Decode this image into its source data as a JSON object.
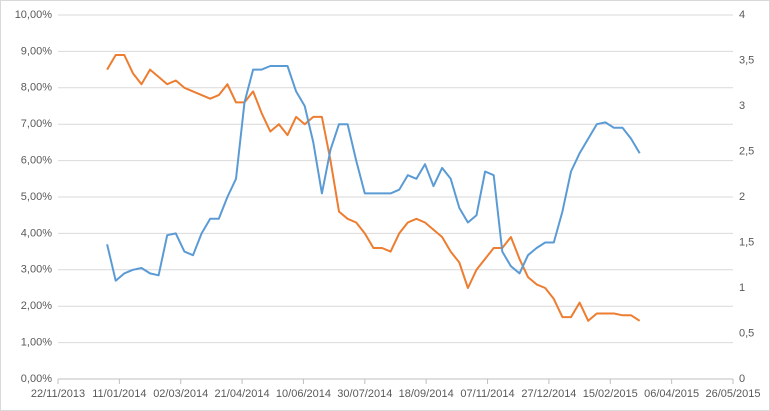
{
  "chart_data": {
    "type": "line",
    "x": [
      "2014-01-01",
      "2014-01-08",
      "2014-01-15",
      "2014-01-22",
      "2014-01-29",
      "2014-02-05",
      "2014-02-12",
      "2014-02-19",
      "2014-02-26",
      "2014-03-05",
      "2014-03-12",
      "2014-03-19",
      "2014-03-26",
      "2014-04-02",
      "2014-04-09",
      "2014-04-16",
      "2014-04-23",
      "2014-04-30",
      "2014-05-07",
      "2014-05-14",
      "2014-05-21",
      "2014-05-28",
      "2014-06-04",
      "2014-06-11",
      "2014-06-18",
      "2014-06-25",
      "2014-07-02",
      "2014-07-09",
      "2014-07-16",
      "2014-07-23",
      "2014-07-30",
      "2014-08-06",
      "2014-08-13",
      "2014-08-20",
      "2014-08-27",
      "2014-09-03",
      "2014-09-10",
      "2014-09-17",
      "2014-09-24",
      "2014-10-01",
      "2014-10-08",
      "2014-10-15",
      "2014-10-22",
      "2014-10-29",
      "2014-11-05",
      "2014-11-12",
      "2014-11-19",
      "2014-11-26",
      "2014-12-03",
      "2014-12-10",
      "2014-12-17",
      "2014-12-24",
      "2014-12-31",
      "2015-01-07",
      "2015-01-14",
      "2015-01-21",
      "2015-01-28",
      "2015-02-04",
      "2015-02-11",
      "2015-02-18",
      "2015-02-25",
      "2015-03-04",
      "2015-03-11"
    ],
    "series": [
      {
        "color": "#ed7d31",
        "axis": "y",
        "values": [
          8.5,
          8.9,
          8.9,
          8.4,
          8.1,
          8.5,
          8.3,
          8.1,
          8.2,
          8.0,
          7.9,
          7.8,
          7.7,
          7.8,
          8.1,
          7.6,
          7.6,
          7.9,
          7.3,
          6.8,
          7.0,
          6.7,
          7.2,
          7.0,
          7.2,
          7.2,
          6.0,
          4.6,
          4.4,
          4.3,
          4.0,
          3.6,
          3.6,
          3.5,
          4.0,
          4.3,
          4.4,
          4.3,
          4.1,
          3.9,
          3.5,
          3.2,
          2.5,
          3.0,
          3.3,
          3.6,
          3.6,
          3.9,
          3.3,
          2.8,
          2.6,
          2.5,
          2.2,
          1.7,
          1.7,
          2.1,
          1.6,
          1.8,
          1.8,
          1.8,
          1.75,
          1.75,
          1.6
        ]
      },
      {
        "color": "#5b9bd5",
        "axis": "y2",
        "values": [
          1.48,
          1.08,
          1.16,
          1.2,
          1.22,
          1.16,
          1.14,
          1.58,
          1.6,
          1.4,
          1.36,
          1.6,
          1.76,
          1.76,
          2.0,
          2.2,
          3.04,
          3.4,
          3.4,
          3.44,
          3.44,
          3.44,
          3.16,
          3.0,
          2.6,
          2.04,
          2.52,
          2.8,
          2.8,
          2.4,
          2.04,
          2.04,
          2.04,
          2.04,
          2.08,
          2.24,
          2.2,
          2.36,
          2.12,
          2.32,
          2.2,
          1.88,
          1.72,
          1.8,
          2.28,
          2.24,
          1.4,
          1.24,
          1.16,
          1.36,
          1.44,
          1.5,
          1.5,
          1.84,
          2.28,
          2.48,
          2.64,
          2.8,
          2.82,
          2.76,
          2.76,
          2.64,
          2.48
        ]
      }
    ],
    "xlim": [
      "2013-11-22",
      "2015-05-26"
    ],
    "xticks": [
      {
        "value": "2013-11-22",
        "label": "22/11/2013"
      },
      {
        "value": "2014-01-11",
        "label": "11/01/2014"
      },
      {
        "value": "2014-03-02",
        "label": "02/03/2014"
      },
      {
        "value": "2014-04-21",
        "label": "21/04/2014"
      },
      {
        "value": "2014-06-10",
        "label": "10/06/2014"
      },
      {
        "value": "2014-07-30",
        "label": "30/07/2014"
      },
      {
        "value": "2014-09-18",
        "label": "18/09/2014"
      },
      {
        "value": "2014-11-07",
        "label": "07/11/2014"
      },
      {
        "value": "2014-12-27",
        "label": "27/12/2014"
      },
      {
        "value": "2015-02-15",
        "label": "15/02/2015"
      },
      {
        "value": "2015-04-06",
        "label": "06/04/2015"
      },
      {
        "value": "2015-05-26",
        "label": "26/05/2015"
      }
    ],
    "ylim": [
      0,
      10
    ],
    "yticks": [
      {
        "value": 0,
        "label": "0,00%"
      },
      {
        "value": 1,
        "label": "1,00%"
      },
      {
        "value": 2,
        "label": "2,00%"
      },
      {
        "value": 3,
        "label": "3,00%"
      },
      {
        "value": 4,
        "label": "4,00%"
      },
      {
        "value": 5,
        "label": "5,00%"
      },
      {
        "value": 6,
        "label": "6,00%"
      },
      {
        "value": 7,
        "label": "7,00%"
      },
      {
        "value": 8,
        "label": "8,00%"
      },
      {
        "value": 9,
        "label": "9,00%"
      },
      {
        "value": 10,
        "label": "10,00%"
      }
    ],
    "y2lim": [
      0,
      4
    ],
    "y2ticks": [
      0,
      {
        "value": 0.5,
        "label": "0,5"
      },
      1,
      {
        "value": 1.5,
        "label": "1,5"
      },
      2,
      {
        "value": 2.5,
        "label": "2,5"
      },
      3,
      {
        "value": 3.5,
        "label": "3,5"
      },
      4
    ],
    "grid": true
  }
}
